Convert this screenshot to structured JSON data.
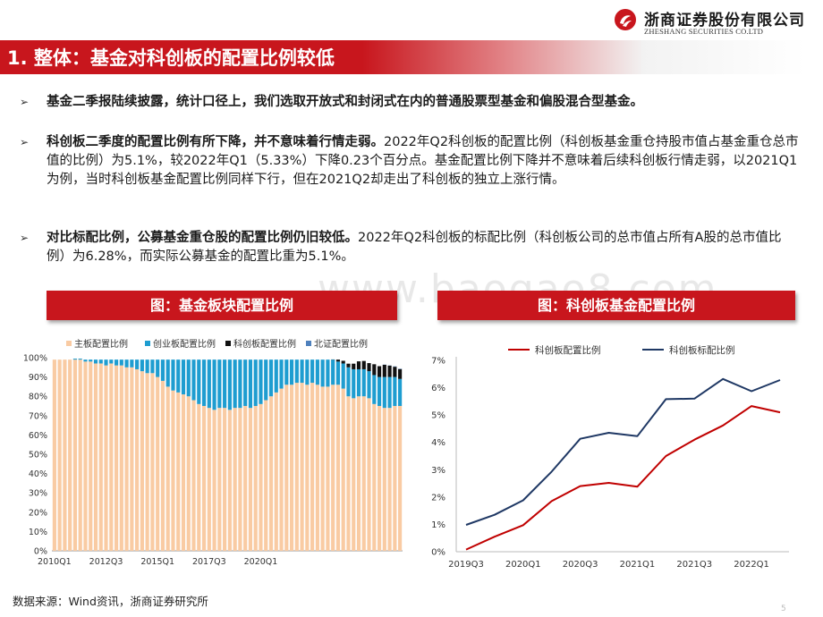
{
  "header": {
    "company_cn": "浙商证券股份有限公司",
    "company_en": "ZHESHANG SECURITIES CO.LTD",
    "title": "1. 整体：基金对科创板的配置比例较低",
    "brand_color": "#c8161d"
  },
  "bullets": [
    {
      "bold": "基金二季报陆续披露，统计口径上，我们选取开放式和封闭式在内的普通股票型基金和偏股混合型基金。",
      "text": ""
    },
    {
      "bold": "科创板二季度的配置比例有所下降，并不意味着行情走弱。",
      "text": "2022年Q2科创板的配置比例（科创板基金重仓持股市值占基金重仓总市值的比例）为5.1%，较2022年Q1（5.33%）下降0.23个百分点。基金配置比例下降并不意味着后续科创板行情走弱，以2021Q1为例，当时科创板基金配置比例同样下行，但在2021Q2却走出了科创板的独立上涨行情。"
    },
    {
      "bold": "对比标配比例，公募基金重仓股的配置比例仍旧较低。",
      "text": "2022年Q2科创板的标配比例（科创板公司的总市值占所有A股的总市值比例）为6.28%，而实际公募基金的配置比重为5.1%。"
    }
  ],
  "watermark": "www.baogao8.com",
  "source": "数据来源：Wind资讯，浙商证券研究所",
  "page_number": "5",
  "chart_data": [
    {
      "type": "bar",
      "stacked": true,
      "title": "图：基金板块配置比例",
      "x_tick_labels": [
        "2010Q1",
        "2012Q3",
        "2015Q1",
        "2017Q3",
        "2020Q1"
      ],
      "y_tick_labels": [
        "0%",
        "10%",
        "20%",
        "30%",
        "40%",
        "50%",
        "60%",
        "70%",
        "80%",
        "90%",
        "100%"
      ],
      "ylim": [
        0,
        100
      ],
      "legend_position": "top",
      "series": [
        {
          "name": "主板配置比例",
          "color": "#f9cba3",
          "values": [
            99,
            99,
            99,
            99,
            99,
            99,
            98,
            98,
            97,
            97,
            96,
            97,
            96,
            96,
            95,
            95,
            94,
            93,
            92,
            92,
            90,
            88,
            85,
            83,
            82,
            81,
            80,
            78,
            76,
            75,
            74,
            73,
            74,
            74,
            73,
            74,
            74,
            75,
            74,
            75,
            76,
            78,
            80,
            82,
            84,
            86,
            86,
            87,
            87,
            86,
            87,
            86,
            85,
            85,
            86,
            86,
            84,
            80,
            79,
            80,
            80,
            79,
            76,
            75,
            74,
            74,
            75,
            75
          ]
        },
        {
          "name": "创业板配置比例",
          "color": "#1e9dd0",
          "values": [
            0,
            0,
            0,
            0,
            0.5,
            0.5,
            1,
            1,
            2,
            2,
            3,
            2,
            3,
            3,
            4,
            4,
            5,
            6,
            7,
            7,
            9,
            11,
            14,
            16,
            17,
            18,
            19,
            21,
            23,
            24,
            25,
            26,
            25,
            25,
            26,
            25,
            25,
            24,
            25,
            24,
            23,
            21,
            19,
            17,
            15,
            13,
            13,
            12,
            12,
            13,
            12,
            13,
            14,
            14,
            13,
            12,
            13,
            15,
            15,
            14,
            14,
            14,
            15,
            15,
            16,
            16,
            15,
            14
          ]
        },
        {
          "name": "科创板配置比例",
          "color": "#111111",
          "values": [
            0,
            0,
            0,
            0,
            0,
            0,
            0,
            0,
            0,
            0,
            0,
            0,
            0,
            0,
            0,
            0,
            0,
            0,
            0,
            0,
            0,
            0,
            0,
            0,
            0,
            0,
            0,
            0,
            0,
            0,
            0,
            0,
            0,
            0,
            0,
            0,
            0,
            0,
            0,
            0,
            0,
            0,
            0,
            0,
            0,
            0,
            0,
            0,
            0,
            0,
            0,
            0,
            0,
            0,
            0.1,
            1.0,
            1.4,
            1.9,
            2.9,
            4.1,
            4.3,
            4.2,
            5.6,
            5.6,
            6.3,
            5.9,
            5.3,
            5.1
          ]
        },
        {
          "name": "北证配置比例",
          "color": "#4f81bd",
          "values": [
            0,
            0,
            0,
            0,
            0,
            0,
            0,
            0,
            0,
            0,
            0,
            0,
            0,
            0,
            0,
            0,
            0,
            0,
            0,
            0,
            0,
            0,
            0,
            0,
            0,
            0,
            0,
            0,
            0,
            0,
            0,
            0,
            0,
            0,
            0,
            0,
            0,
            0,
            0,
            0,
            0,
            0,
            0,
            0,
            0,
            0,
            0,
            0,
            0,
            0,
            0,
            0,
            0,
            0,
            0,
            0,
            0,
            0,
            0,
            0,
            0,
            0,
            0,
            0,
            0.1,
            0.1,
            0.2,
            0.2
          ]
        }
      ]
    },
    {
      "type": "line",
      "title": "图：科创板基金配置比例",
      "x": [
        "2019Q3",
        "2019Q4",
        "2020Q1",
        "2020Q2",
        "2020Q3",
        "2020Q4",
        "2021Q1",
        "2021Q2",
        "2021Q3",
        "2021Q4",
        "2022Q1",
        "2022Q2"
      ],
      "x_tick_labels": [
        "2019Q3",
        "2020Q1",
        "2020Q3",
        "2021Q1",
        "2021Q3",
        "2022Q1"
      ],
      "y_tick_labels": [
        "0%",
        "1%",
        "2%",
        "3%",
        "4%",
        "5%",
        "6%",
        "7%"
      ],
      "ylim": [
        0,
        7
      ],
      "legend_position": "top",
      "series": [
        {
          "name": "科创板配置比例",
          "color": "#c00000",
          "values": [
            0.08,
            0.55,
            0.97,
            1.85,
            2.4,
            2.52,
            2.38,
            3.5,
            4.1,
            4.62,
            5.33,
            5.1
          ]
        },
        {
          "name": "科创板标配比例",
          "color": "#1f3864",
          "values": [
            0.98,
            1.35,
            1.88,
            2.93,
            4.13,
            4.35,
            4.23,
            5.58,
            5.6,
            6.32,
            5.87,
            6.28
          ]
        }
      ]
    }
  ]
}
